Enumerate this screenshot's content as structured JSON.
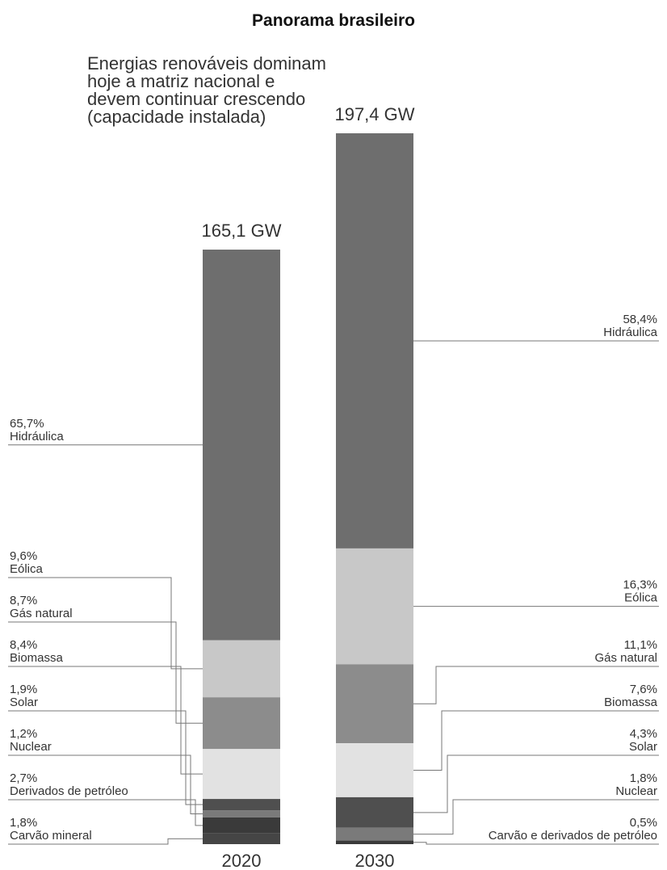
{
  "title": "Panorama brasileiro",
  "subtitle": "Energias renováveis dominam hoje a matriz nacional e devem continuar crescendo (capacidade instalada)",
  "chart_data": {
    "type": "bar",
    "stacked": true,
    "unit": "%",
    "categories": [
      "2020",
      "2030"
    ],
    "totals": [
      "165,1 GW",
      "197,4 GW"
    ],
    "series": [
      {
        "name": "Hidráulica",
        "values": [
          65.7,
          58.4
        ],
        "labels": [
          "65,7%",
          "58,4%"
        ],
        "color": "#6e6e6e"
      },
      {
        "name": "Eólica",
        "values": [
          9.6,
          16.3
        ],
        "labels": [
          "9,6%",
          "16,3%"
        ],
        "color": "#c8c8c8"
      },
      {
        "name": "Gás natural",
        "values": [
          8.7,
          11.1
        ],
        "labels": [
          "8,7%",
          "11,1%"
        ],
        "color": "#8c8c8c"
      },
      {
        "name": "Biomassa",
        "values": [
          8.4,
          7.6
        ],
        "labels": [
          "8,4%",
          "7,6%"
        ],
        "color": "#e2e2e2"
      },
      {
        "name": "Solar",
        "values": [
          1.9,
          4.3
        ],
        "labels": [
          "1,9%",
          "4,3%"
        ],
        "color": "#4f4f4f"
      },
      {
        "name": "Nuclear",
        "values": [
          1.2,
          1.8
        ],
        "labels": [
          "1,2%",
          "1,8%"
        ],
        "color": "#7a7a7a"
      },
      {
        "name": "Derivados de petróleo",
        "values": [
          2.7,
          null
        ],
        "labels": [
          "2,7%",
          null
        ],
        "color": "#3a3a3a"
      },
      {
        "name": "Carvão mineral",
        "values": [
          1.8,
          null
        ],
        "labels": [
          "1,8%",
          null
        ],
        "color": "#454545"
      },
      {
        "name": "Carvão e derivados de petróleo",
        "values": [
          null,
          0.5
        ],
        "labels": [
          null,
          "0,5%"
        ],
        "color": "#3a3a3a"
      }
    ]
  }
}
